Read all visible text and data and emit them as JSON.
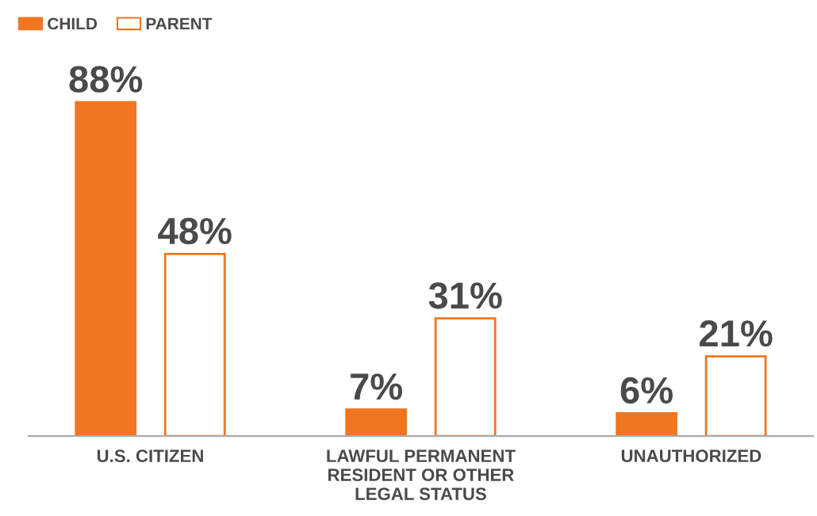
{
  "chart_data": {
    "type": "bar",
    "categories": [
      "U.S. CITIZEN",
      "LAWFUL PERMANENT\nRESIDENT OR OTHER\nLEGAL STATUS",
      "UNAUTHORIZED"
    ],
    "series": [
      {
        "name": "CHILD",
        "color": "#f07622",
        "values": [
          88,
          7,
          6
        ],
        "value_labels": [
          "88%",
          "7%",
          "6%"
        ]
      },
      {
        "name": "PARENT",
        "color": "#ffffff",
        "values": [
          48,
          31,
          21
        ],
        "value_labels": [
          "48%",
          "31%",
          "21%"
        ]
      }
    ],
    "legend": "top left"
  }
}
